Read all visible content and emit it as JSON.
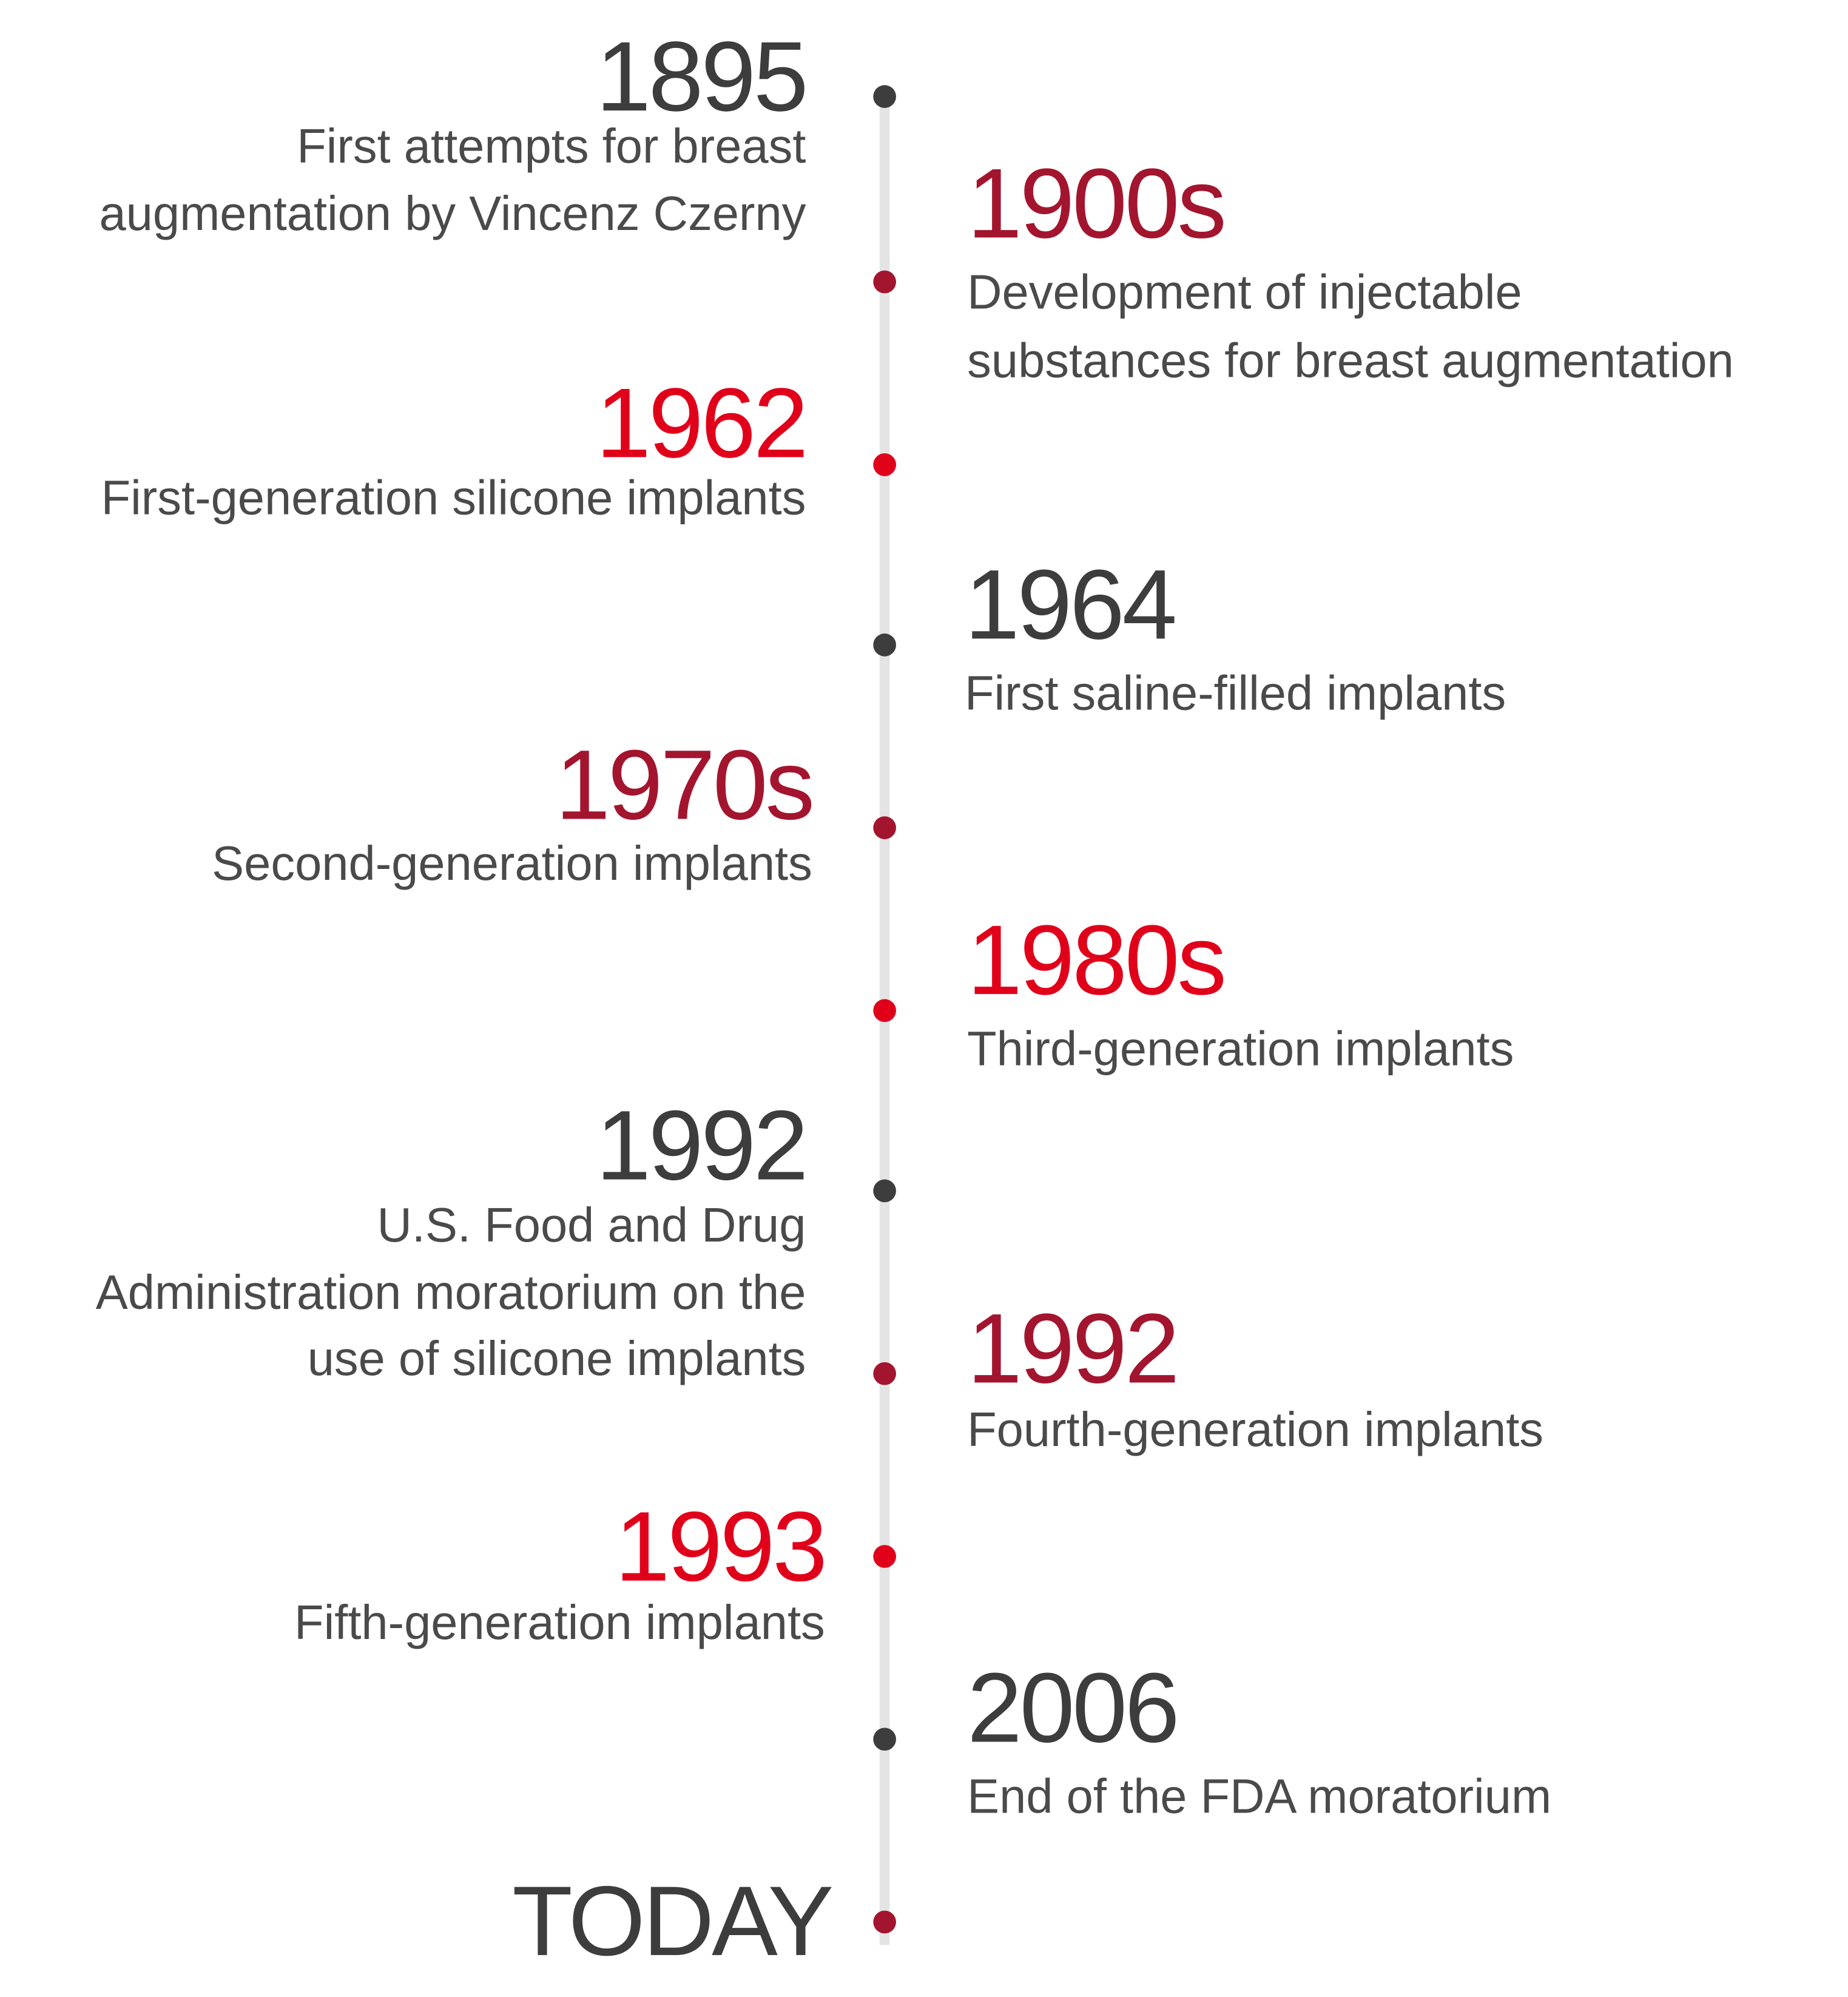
{
  "timeline": {
    "items": [
      {
        "year": "1895",
        "lines": [
          "First attempts for breast",
          "augmentation by Vincenz Czerny"
        ]
      },
      {
        "year": "1900s",
        "lines": [
          "Development of injectable",
          "substances for breast augmentation"
        ]
      },
      {
        "year": "1962",
        "lines": [
          "First-generation silicone implants"
        ]
      },
      {
        "year": "1964",
        "lines": [
          "First saline-filled implants"
        ]
      },
      {
        "year": "1970s",
        "lines": [
          "Second-generation implants"
        ]
      },
      {
        "year": "1980s",
        "lines": [
          "Third-generation implants"
        ]
      },
      {
        "year": "1992",
        "lines": [
          "U.S. Food and Drug",
          "Administration moratorium on the",
          "use of silicone implants"
        ]
      },
      {
        "year": "1992",
        "lines": [
          "Fourth-generation implants"
        ]
      },
      {
        "year": "1993",
        "lines": [
          "Fifth-generation implants"
        ]
      },
      {
        "year": "2006",
        "lines": [
          "End of the FDA moratorium"
        ]
      },
      {
        "year": "TODAY",
        "lines": []
      }
    ]
  }
}
